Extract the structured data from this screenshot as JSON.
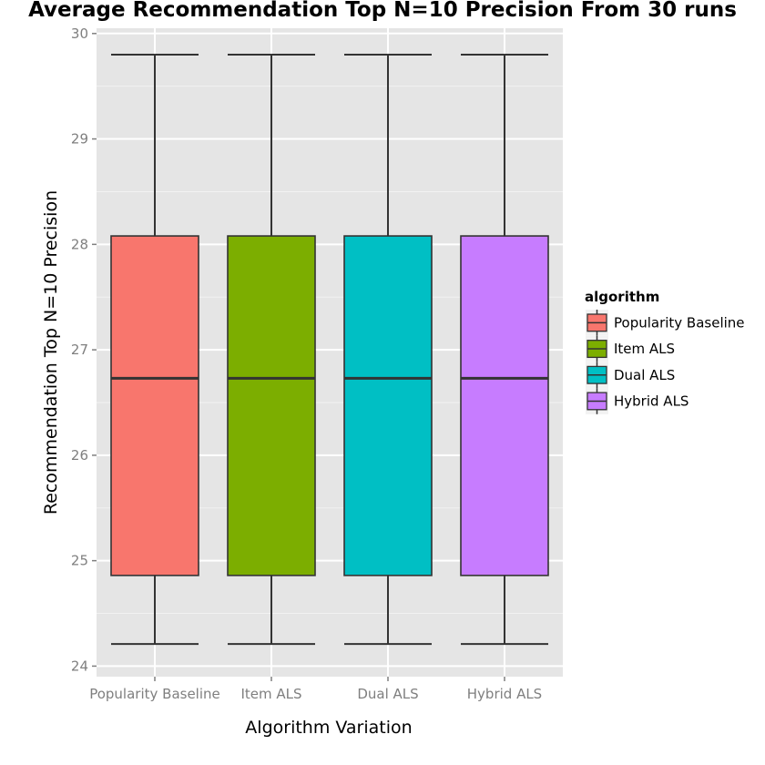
{
  "chart_data": {
    "type": "box",
    "title": "Average Recommendation Top N=10 Precision From 30 runs",
    "xlabel": "Algorithm Variation",
    "ylabel": "Recommendation Top N=10 Precision",
    "categories": [
      "Popularity Baseline",
      "Item ALS",
      "Dual ALS",
      "Hybrid ALS"
    ],
    "ylim": [
      23.9,
      30.05
    ],
    "yticks": [
      24,
      25,
      26,
      27,
      28,
      29,
      30
    ],
    "grid": true,
    "legend_position": "right",
    "legend": {
      "title": "algorithm",
      "entries": [
        "Popularity Baseline",
        "Item ALS",
        "Dual ALS",
        "Hybrid ALS"
      ]
    },
    "boxes": [
      {
        "name": "Popularity Baseline",
        "min": 24.21,
        "q1": 24.86,
        "median": 26.73,
        "q3": 28.08,
        "max": 29.8,
        "color": "#F8766D"
      },
      {
        "name": "Item ALS",
        "min": 24.21,
        "q1": 24.86,
        "median": 26.73,
        "q3": 28.08,
        "max": 29.8,
        "color": "#7CAE00"
      },
      {
        "name": "Dual ALS",
        "min": 24.21,
        "q1": 24.86,
        "median": 26.73,
        "q3": 28.08,
        "max": 29.8,
        "color": "#00BFC4"
      },
      {
        "name": "Hybrid ALS",
        "min": 24.21,
        "q1": 24.86,
        "median": 26.73,
        "q3": 28.08,
        "max": 29.8,
        "color": "#C77CFF"
      }
    ]
  }
}
